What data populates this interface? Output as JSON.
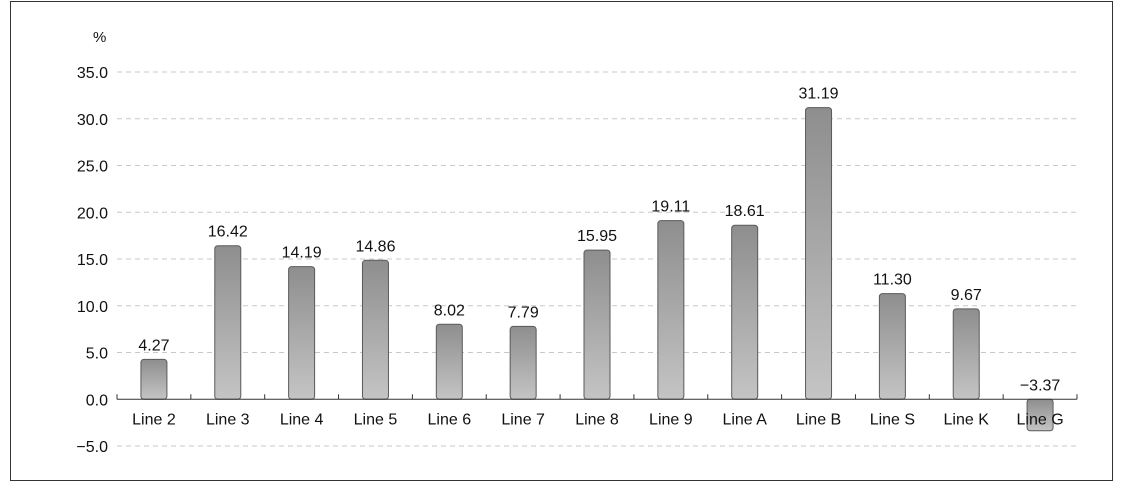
{
  "chart_data": {
    "type": "bar",
    "unit_label": "%",
    "categories": [
      "Line 2",
      "Line 3",
      "Line 4",
      "Line 5",
      "Line 6",
      "Line 7",
      "Line 8",
      "Line 9",
      "Line A",
      "Line B",
      "Line S",
      "Line K",
      "Line G"
    ],
    "values": [
      4.27,
      16.42,
      14.19,
      14.86,
      8.02,
      7.79,
      15.95,
      19.11,
      18.61,
      31.19,
      11.3,
      9.67,
      -3.37
    ],
    "value_labels": [
      "4.27",
      "16.42",
      "14.19",
      "14.86",
      "8.02",
      "7.79",
      "15.95",
      "19.11",
      "18.61",
      "31.19",
      "11.30",
      "9.67",
      "−3.37"
    ],
    "yticks": [
      "35.0",
      "30.0",
      "25.0",
      "20.0",
      "15.0",
      "10.0",
      "5.0",
      "0.0",
      "−5.0"
    ],
    "ylim": [
      -5,
      35
    ],
    "grid": true,
    "bar_color_top": "#8e8e8e",
    "bar_color_bottom": "#c4c4c4",
    "bar_stroke": "#5a5a5a",
    "grid_color": "#c8c8c8"
  }
}
